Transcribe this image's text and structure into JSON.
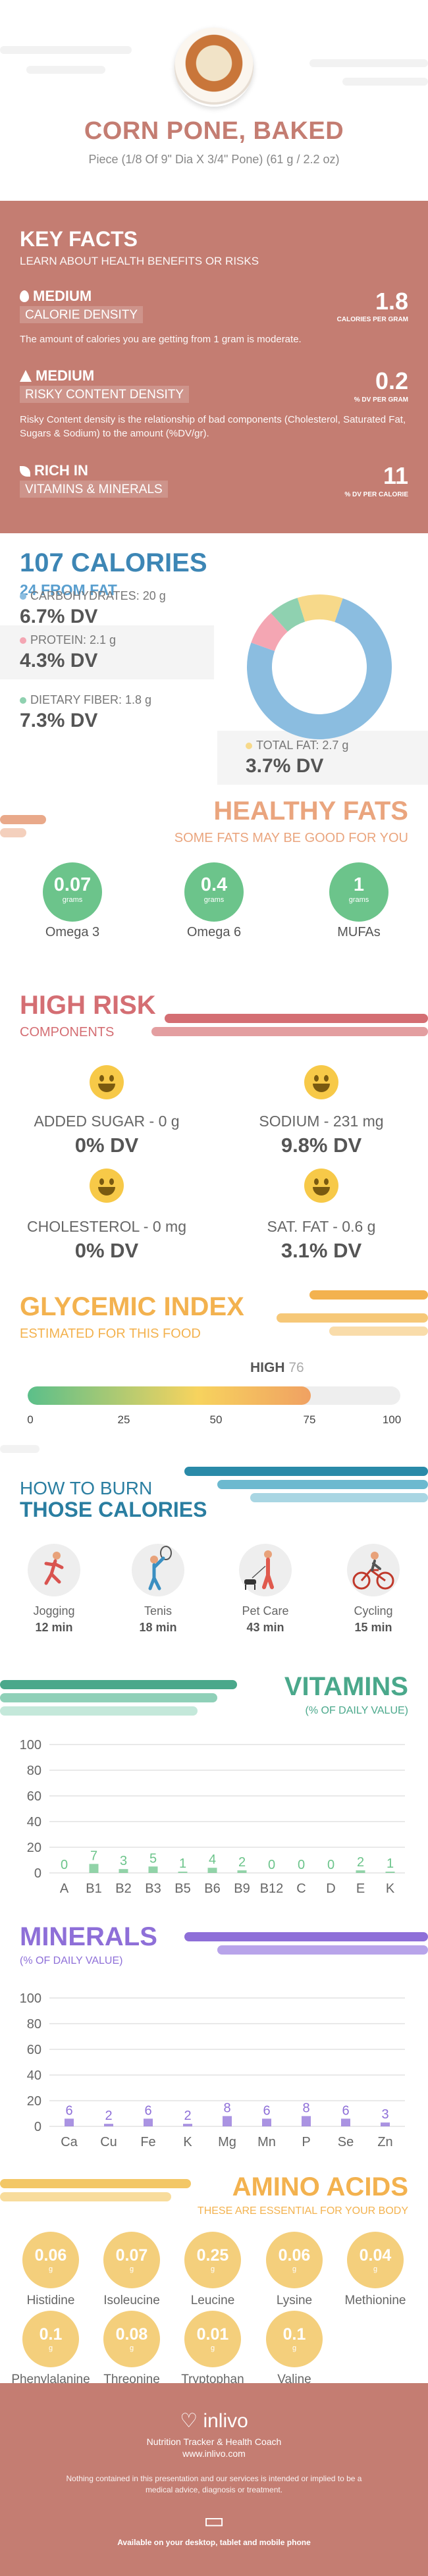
{
  "header": {
    "title": "CORN PONE, BAKED",
    "serving": "Piece (1/8 Of 9\" Dia X 3/4\" Pone) (61 g / 2.2 oz)"
  },
  "key_facts": {
    "title": "KEY FACTS",
    "subtitle": "LEARN ABOUT HEALTH BENEFITS OR RISKS",
    "items": [
      {
        "level": "MEDIUM",
        "label": "CALORIE DENSITY",
        "value": "1.8",
        "unit": "CALORIES PER GRAM",
        "description": "The amount of calories you are getting from 1 gram is moderate."
      },
      {
        "level": "MEDIUM",
        "label": "RISKY CONTENT DENSITY",
        "value": "0.2",
        "unit": "% DV PER GRAM",
        "description": "Risky Content density is the relationship of bad components (Cholesterol, Saturated Fat, Sugars & Sodium) to the amount (%DV/gr)."
      },
      {
        "level": "RICH  IN",
        "label": "VITAMINS & MINERALS",
        "value": "11",
        "unit": "% DV PER CALORIE",
        "description": ""
      }
    ]
  },
  "calories": {
    "title": "107 CALORIES",
    "from_fat": "24 FROM FAT",
    "nutrients": [
      {
        "label": "CARBOHYDRATES: 20 g",
        "dv": "6.7% DV",
        "color": "#8bbde0"
      },
      {
        "label": "PROTEIN: 2.1 g",
        "dv": "4.3% DV",
        "color": "#f4a6b3"
      },
      {
        "label": "DIETARY FIBER: 1.8 g",
        "dv": "7.3% DV",
        "color": "#8fd1b0"
      },
      {
        "label": "TOTAL FAT: 2.7 g",
        "dv": "3.7% DV",
        "color": "#f7d98a"
      }
    ]
  },
  "chart_data": [
    {
      "type": "pie",
      "title": "",
      "categories": [
        "Carbohydrates",
        "Protein",
        "Dietary Fiber",
        "Total Fat"
      ],
      "values": [
        20,
        2.1,
        1.8,
        2.7
      ],
      "colors": [
        "#8bbde0",
        "#f4a6b3",
        "#8fd1b0",
        "#f7d98a"
      ]
    },
    {
      "type": "bar",
      "title": "VITAMINS",
      "categories": [
        "A",
        "B1",
        "B2",
        "B3",
        "B5",
        "B6",
        "B9",
        "B12",
        "C",
        "D",
        "E",
        "K"
      ],
      "values": [
        0,
        7,
        3,
        5,
        1,
        4,
        2,
        0,
        0,
        0,
        2,
        1
      ],
      "ylim": [
        0,
        100
      ],
      "yticks": [
        0,
        20,
        40,
        60,
        80,
        100
      ],
      "grid": true
    },
    {
      "type": "bar",
      "title": "MINERALS",
      "categories": [
        "Ca",
        "Cu",
        "Fe",
        "K",
        "Mg",
        "Mn",
        "P",
        "Se",
        "Zn"
      ],
      "values": [
        6,
        2,
        6,
        2,
        8,
        6,
        8,
        6,
        3
      ],
      "ylim": [
        0,
        100
      ],
      "yticks": [
        0,
        20,
        40,
        60,
        80,
        100
      ],
      "grid": true
    }
  ],
  "healthy_fats": {
    "title": "HEALTHY FATS",
    "subtitle": "SOME FATS MAY BE GOOD FOR YOU",
    "unit": "grams",
    "items": [
      {
        "name": "Omega 3",
        "value": "0.07"
      },
      {
        "name": "Omega 6",
        "value": "0.4"
      },
      {
        "name": "MUFAs",
        "value": "1"
      }
    ]
  },
  "high_risk": {
    "title": "HIGH RISK",
    "subtitle": "COMPONENTS",
    "items": [
      {
        "label": "ADDED SUGAR - 0 g",
        "dv": "0% DV"
      },
      {
        "label": "SODIUM - 231 mg",
        "dv": "9.8% DV"
      },
      {
        "label": "CHOLESTEROL - 0 mg",
        "dv": "0% DV"
      },
      {
        "label": "SAT. FAT - 0.6 g",
        "dv": "3.1% DV"
      }
    ]
  },
  "glycemic": {
    "title": "GLYCEMIC INDEX",
    "subtitle": "ESTIMATED FOR THIS FOOD",
    "level": "HIGH",
    "value": 76,
    "value_text": "76",
    "scale_max": 100,
    "ticks": [
      "0",
      "25",
      "50",
      "75",
      "100"
    ]
  },
  "burn": {
    "title_line1": "HOW TO BURN",
    "title_line2": "THOSE CALORIES",
    "activities": [
      {
        "name": "Jogging",
        "minutes": "12 min",
        "icon": "jogging-icon"
      },
      {
        "name": "Tenis",
        "minutes": "18 min",
        "icon": "tennis-icon"
      },
      {
        "name": "Pet Care",
        "minutes": "43 min",
        "icon": "dog-walking-icon"
      },
      {
        "name": "Cycling",
        "minutes": "15 min",
        "icon": "cycling-icon"
      }
    ]
  },
  "vitamins": {
    "title": "VITAMINS",
    "subtitle": "(% OF DAILY VALUE)",
    "value_labels": [
      "0",
      "7",
      "3",
      "5",
      "1",
      "4",
      "2",
      "0",
      "0",
      "0",
      "2",
      "1"
    ],
    "color": "#6cc48b"
  },
  "minerals": {
    "title": "MINERALS",
    "subtitle": "(% OF DAILY VALUE)",
    "value_labels": [
      "6",
      "2",
      "6",
      "2",
      "8",
      "6",
      "8",
      "6",
      "3"
    ],
    "color": "#8e6fd8"
  },
  "amino": {
    "title": "AMINO ACIDS",
    "subtitle": "THESE ARE ESSENTIAL FOR YOUR BODY",
    "unit": "g",
    "items": [
      {
        "name": "Histidine",
        "value": "0.06"
      },
      {
        "name": "Isoleucine",
        "value": "0.07"
      },
      {
        "name": "Leucine",
        "value": "0.25"
      },
      {
        "name": "Lysine",
        "value": "0.06"
      },
      {
        "name": "Methionine",
        "value": "0.04"
      },
      {
        "name": "Phenylalanine",
        "value": "0.1"
      },
      {
        "name": "Threonine",
        "value": "0.08"
      },
      {
        "name": "Tryptophan",
        "value": "0.01"
      },
      {
        "name": "Valine",
        "value": "0.1"
      }
    ]
  },
  "footer": {
    "brand": "inlivo",
    "tagline": "Nutrition Tracker & Health Coach",
    "url": "www.inlivo.com",
    "disclaimer": "Nothing contained in this presentation and our services is intended or implied to be a medical advice, diagnosis or treatment.",
    "available": "Available on your desktop, tablet and mobile phone"
  }
}
